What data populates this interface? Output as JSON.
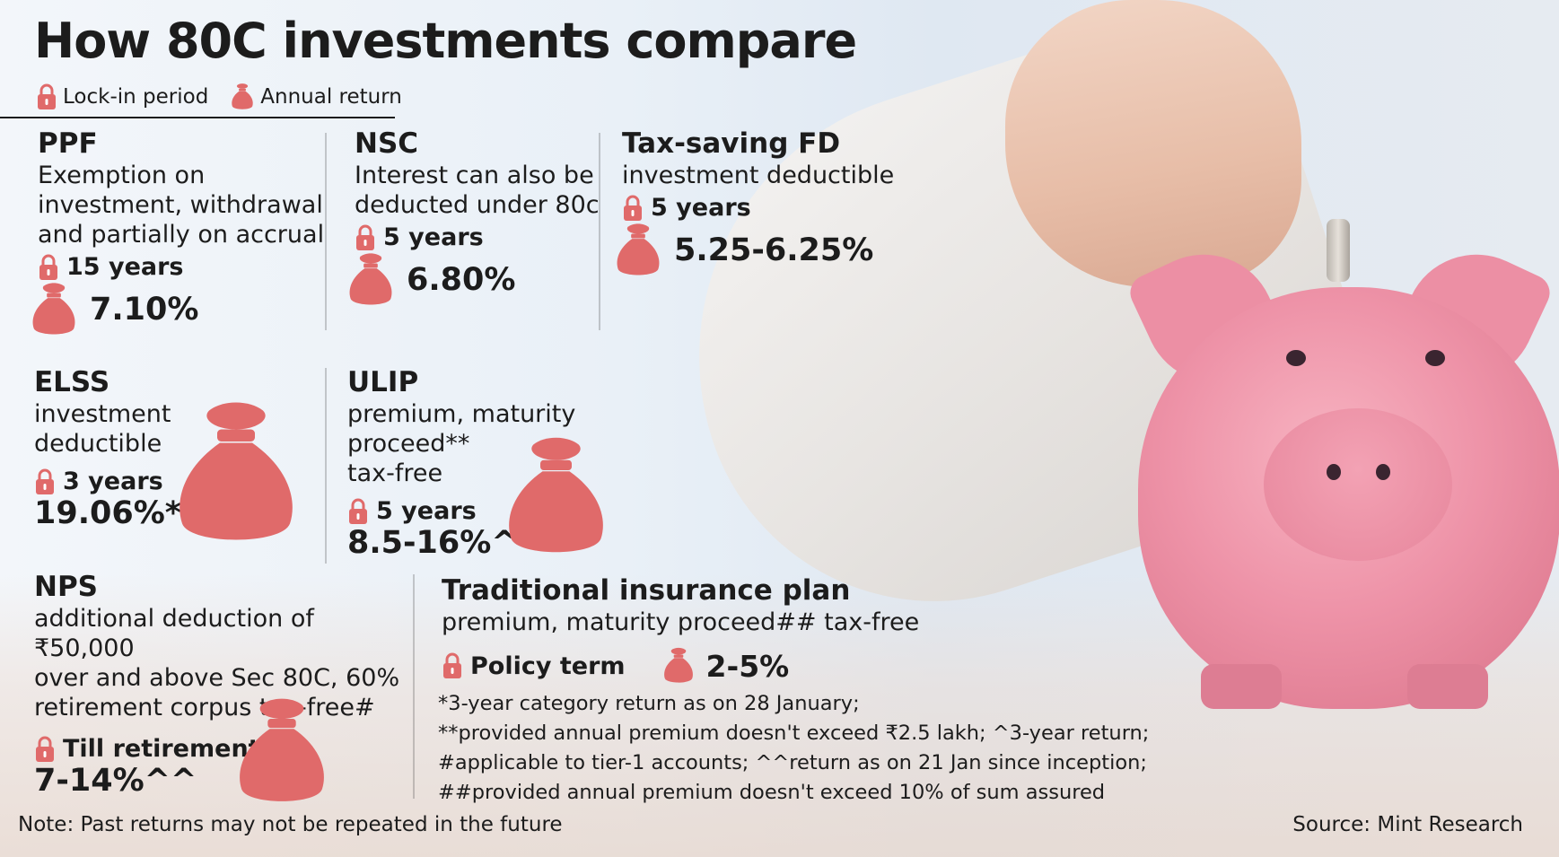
{
  "title": "How 80C investments compare",
  "legend": {
    "lock_label": "Lock-in period",
    "return_label": "Annual return"
  },
  "colors": {
    "icon": "#e06a6a",
    "text": "#1c1c1c"
  },
  "icons": {
    "lock": "lock-icon",
    "return": "money-bag-icon"
  },
  "sections": {
    "ppf": {
      "name": "PPF",
      "desc": [
        "Exemption on",
        "investment, withdrawal",
        "and partially on accrual"
      ],
      "lockin": "15 years",
      "return": "7.10%"
    },
    "nsc": {
      "name": "NSC",
      "desc": [
        "Interest can also be",
        "deducted under 80c"
      ],
      "lockin": "5 years",
      "return": "6.80%"
    },
    "fd": {
      "name": "Tax-saving FD",
      "desc": [
        "investment deductible"
      ],
      "lockin": "5 years",
      "return": "5.25-6.25%"
    },
    "elss": {
      "name": "ELSS",
      "desc": [
        "investment",
        "deductible"
      ],
      "lockin": "3 years",
      "return": "19.06%*"
    },
    "ulip": {
      "name": "ULIP",
      "desc": [
        "premium, maturity proceed**",
        "tax-free"
      ],
      "lockin": "5 years",
      "return": "8.5-16%^"
    },
    "nps": {
      "name": "NPS",
      "desc": [
        "additional deduction of ₹50,000",
        "over and above Sec 80C, 60%",
        "retirement corpus tax-free#"
      ],
      "lockin": "Till retirement",
      "return": "7-14%^^"
    },
    "trad": {
      "name": "Traditional insurance plan",
      "desc": [
        "premium, maturity proceed## tax-free"
      ],
      "lockin": "Policy term",
      "return": "2-5%"
    }
  },
  "footnotes": [
    "*3-year category return as on 28 January;",
    "**provided annual premium doesn't exceed ₹2.5 lakh; ^3-year return;",
    "#applicable to tier-1 accounts; ^^return as on 21 Jan since inception;",
    "##provided annual premium doesn't exceed 10% of sum assured"
  ],
  "note": "Note: Past returns may not be repeated in the future",
  "source": "Source: Mint Research"
}
